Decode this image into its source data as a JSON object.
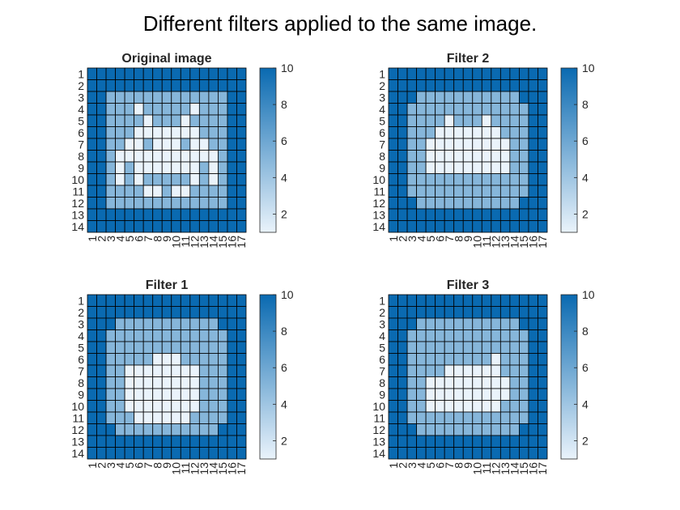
{
  "figure_title": "Different filters applied to the same image.",
  "colors": {
    "high": "#0a6ab1",
    "low": "#eaf3fb",
    "grid": "#000000"
  },
  "chart_data": [
    {
      "type": "heatmap",
      "title": "Original image",
      "x_ticks": [
        "1",
        "2",
        "3",
        "4",
        "5",
        "6",
        "7",
        "8",
        "9",
        "10",
        "11",
        "12",
        "13",
        "14",
        "15",
        "16",
        "17"
      ],
      "y_ticks": [
        "1",
        "2",
        "3",
        "4",
        "5",
        "6",
        "7",
        "8",
        "9",
        "10",
        "11",
        "12",
        "13",
        "14"
      ],
      "colorbar": {
        "ticks": [
          "2",
          "4",
          "6",
          "8",
          "10"
        ],
        "range": [
          1,
          10
        ]
      },
      "matrix": [
        [
          10,
          10,
          10,
          10,
          10,
          10,
          10,
          10,
          10,
          10,
          10,
          10,
          10,
          10,
          10,
          10,
          10
        ],
        [
          10,
          10,
          10,
          10,
          10,
          10,
          10,
          10,
          10,
          10,
          10,
          10,
          10,
          10,
          10,
          10,
          10
        ],
        [
          10,
          10,
          5,
          5,
          5,
          5,
          5,
          5,
          5,
          5,
          5,
          5,
          5,
          5,
          5,
          10,
          10
        ],
        [
          10,
          10,
          5,
          5,
          5,
          1,
          5,
          5,
          5,
          5,
          5,
          1,
          5,
          5,
          5,
          10,
          10
        ],
        [
          10,
          10,
          5,
          5,
          5,
          5,
          1,
          5,
          5,
          5,
          1,
          5,
          5,
          5,
          5,
          10,
          10
        ],
        [
          10,
          10,
          5,
          5,
          5,
          1,
          1,
          1,
          1,
          1,
          1,
          1,
          5,
          5,
          5,
          10,
          10
        ],
        [
          10,
          10,
          5,
          5,
          1,
          1,
          5,
          1,
          1,
          1,
          5,
          1,
          1,
          5,
          5,
          10,
          10
        ],
        [
          10,
          10,
          5,
          1,
          1,
          1,
          1,
          1,
          1,
          1,
          1,
          1,
          1,
          1,
          5,
          10,
          10
        ],
        [
          10,
          10,
          5,
          1,
          5,
          1,
          1,
          1,
          1,
          1,
          1,
          1,
          5,
          1,
          5,
          10,
          10
        ],
        [
          10,
          10,
          5,
          1,
          5,
          1,
          5,
          5,
          5,
          5,
          5,
          1,
          5,
          1,
          5,
          10,
          10
        ],
        [
          10,
          10,
          5,
          5,
          5,
          5,
          1,
          1,
          5,
          1,
          1,
          5,
          5,
          5,
          5,
          10,
          10
        ],
        [
          10,
          10,
          5,
          5,
          5,
          5,
          5,
          5,
          5,
          5,
          5,
          5,
          5,
          5,
          5,
          10,
          10
        ],
        [
          10,
          10,
          10,
          10,
          10,
          10,
          10,
          10,
          10,
          10,
          10,
          10,
          10,
          10,
          10,
          10,
          10
        ],
        [
          10,
          10,
          10,
          10,
          10,
          10,
          10,
          10,
          10,
          10,
          10,
          10,
          10,
          10,
          10,
          10,
          10
        ]
      ]
    },
    {
      "type": "heatmap",
      "title": "Filter 2",
      "x_ticks": [
        "1",
        "2",
        "3",
        "4",
        "5",
        "6",
        "7",
        "8",
        "9",
        "10",
        "11",
        "12",
        "13",
        "14",
        "15",
        "16",
        "17"
      ],
      "y_ticks": [
        "1",
        "2",
        "3",
        "4",
        "5",
        "6",
        "7",
        "8",
        "9",
        "10",
        "11",
        "12",
        "13",
        "14"
      ],
      "colorbar": {
        "ticks": [
          "2",
          "4",
          "6",
          "8",
          "10"
        ],
        "range": [
          1,
          10
        ]
      },
      "matrix": [
        [
          10,
          10,
          10,
          10,
          10,
          10,
          10,
          10,
          10,
          10,
          10,
          10,
          10,
          10,
          10,
          10,
          10
        ],
        [
          10,
          10,
          10,
          10,
          10,
          10,
          10,
          10,
          10,
          10,
          10,
          10,
          10,
          10,
          10,
          10,
          10
        ],
        [
          10,
          10,
          10,
          5,
          5,
          5,
          5,
          5,
          5,
          5,
          5,
          5,
          5,
          5,
          10,
          10,
          10
        ],
        [
          10,
          10,
          5,
          5,
          5,
          5,
          5,
          5,
          5,
          5,
          5,
          5,
          5,
          5,
          5,
          10,
          10
        ],
        [
          10,
          10,
          5,
          5,
          5,
          5,
          1,
          5,
          5,
          5,
          1,
          5,
          5,
          5,
          5,
          10,
          10
        ],
        [
          10,
          10,
          5,
          5,
          5,
          1,
          1,
          1,
          1,
          1,
          1,
          1,
          5,
          5,
          5,
          10,
          10
        ],
        [
          10,
          10,
          5,
          5,
          1,
          1,
          1,
          1,
          1,
          1,
          1,
          1,
          1,
          5,
          5,
          10,
          10
        ],
        [
          10,
          10,
          5,
          5,
          1,
          1,
          1,
          1,
          1,
          1,
          1,
          1,
          1,
          5,
          5,
          10,
          10
        ],
        [
          10,
          10,
          5,
          5,
          1,
          1,
          1,
          1,
          1,
          1,
          1,
          1,
          1,
          5,
          5,
          10,
          10
        ],
        [
          10,
          10,
          5,
          5,
          5,
          5,
          5,
          5,
          5,
          5,
          5,
          5,
          5,
          5,
          5,
          10,
          10
        ],
        [
          10,
          10,
          5,
          5,
          5,
          5,
          5,
          5,
          5,
          5,
          5,
          5,
          5,
          5,
          5,
          10,
          10
        ],
        [
          10,
          10,
          10,
          5,
          5,
          5,
          5,
          5,
          5,
          5,
          5,
          5,
          5,
          5,
          10,
          10,
          10
        ],
        [
          10,
          10,
          10,
          10,
          10,
          10,
          10,
          10,
          10,
          10,
          10,
          10,
          10,
          10,
          10,
          10,
          10
        ],
        [
          10,
          10,
          10,
          10,
          10,
          10,
          10,
          10,
          10,
          10,
          10,
          10,
          10,
          10,
          10,
          10,
          10
        ]
      ]
    },
    {
      "type": "heatmap",
      "title": "Filter 1",
      "x_ticks": [
        "1",
        "2",
        "3",
        "4",
        "5",
        "6",
        "7",
        "8",
        "9",
        "10",
        "11",
        "12",
        "13",
        "14",
        "15",
        "16",
        "17"
      ],
      "y_ticks": [
        "1",
        "2",
        "3",
        "4",
        "5",
        "6",
        "7",
        "8",
        "9",
        "10",
        "11",
        "12",
        "13",
        "14"
      ],
      "colorbar": {
        "ticks": [
          "2",
          "4",
          "6",
          "8",
          "10"
        ],
        "range": [
          1,
          10
        ]
      },
      "matrix": [
        [
          10,
          10,
          10,
          10,
          10,
          10,
          10,
          10,
          10,
          10,
          10,
          10,
          10,
          10,
          10,
          10,
          10
        ],
        [
          10,
          10,
          10,
          10,
          10,
          10,
          10,
          10,
          10,
          10,
          10,
          10,
          10,
          10,
          10,
          10,
          10
        ],
        [
          10,
          10,
          10,
          5,
          5,
          5,
          5,
          5,
          5,
          5,
          5,
          5,
          5,
          5,
          10,
          10,
          10
        ],
        [
          10,
          10,
          5,
          5,
          5,
          5,
          5,
          5,
          5,
          5,
          5,
          5,
          5,
          5,
          5,
          10,
          10
        ],
        [
          10,
          10,
          5,
          5,
          5,
          5,
          5,
          5,
          5,
          5,
          5,
          5,
          5,
          5,
          5,
          10,
          10
        ],
        [
          10,
          10,
          5,
          5,
          5,
          5,
          5,
          1,
          1,
          1,
          5,
          5,
          5,
          5,
          5,
          10,
          10
        ],
        [
          10,
          10,
          5,
          5,
          1,
          1,
          1,
          1,
          1,
          1,
          1,
          1,
          5,
          5,
          5,
          10,
          10
        ],
        [
          10,
          10,
          5,
          5,
          1,
          1,
          1,
          1,
          1,
          1,
          1,
          1,
          5,
          5,
          5,
          10,
          10
        ],
        [
          10,
          10,
          5,
          5,
          1,
          1,
          1,
          1,
          1,
          1,
          1,
          1,
          5,
          5,
          5,
          10,
          10
        ],
        [
          10,
          10,
          5,
          5,
          1,
          1,
          1,
          1,
          1,
          1,
          1,
          1,
          5,
          5,
          5,
          10,
          10
        ],
        [
          10,
          10,
          5,
          5,
          5,
          1,
          1,
          1,
          1,
          1,
          1,
          5,
          5,
          5,
          5,
          10,
          10
        ],
        [
          10,
          10,
          10,
          5,
          5,
          5,
          5,
          5,
          5,
          5,
          5,
          5,
          5,
          5,
          10,
          10,
          10
        ],
        [
          10,
          10,
          10,
          10,
          10,
          10,
          10,
          10,
          10,
          10,
          10,
          10,
          10,
          10,
          10,
          10,
          10
        ],
        [
          10,
          10,
          10,
          10,
          10,
          10,
          10,
          10,
          10,
          10,
          10,
          10,
          10,
          10,
          10,
          10,
          10
        ]
      ]
    },
    {
      "type": "heatmap",
      "title": "Filter 3",
      "x_ticks": [
        "1",
        "2",
        "3",
        "4",
        "5",
        "6",
        "7",
        "8",
        "9",
        "10",
        "11",
        "12",
        "13",
        "14",
        "15",
        "16",
        "17"
      ],
      "y_ticks": [
        "1",
        "2",
        "3",
        "4",
        "5",
        "6",
        "7",
        "8",
        "9",
        "10",
        "11",
        "12",
        "13",
        "14"
      ],
      "colorbar": {
        "ticks": [
          "2",
          "4",
          "6",
          "8",
          "10"
        ],
        "range": [
          1,
          10
        ]
      },
      "matrix": [
        [
          10,
          10,
          10,
          10,
          10,
          10,
          10,
          10,
          10,
          10,
          10,
          10,
          10,
          10,
          10,
          10,
          10
        ],
        [
          10,
          10,
          10,
          10,
          10,
          10,
          10,
          10,
          10,
          10,
          10,
          10,
          10,
          10,
          10,
          10,
          10
        ],
        [
          10,
          10,
          10,
          5,
          5,
          5,
          5,
          5,
          5,
          5,
          5,
          5,
          5,
          5,
          10,
          10,
          10
        ],
        [
          10,
          10,
          5,
          5,
          5,
          5,
          5,
          5,
          5,
          5,
          5,
          5,
          5,
          5,
          5,
          10,
          10
        ],
        [
          10,
          10,
          5,
          5,
          5,
          5,
          5,
          5,
          5,
          5,
          5,
          5,
          5,
          5,
          5,
          10,
          10
        ],
        [
          10,
          10,
          5,
          5,
          5,
          5,
          5,
          5,
          5,
          5,
          5,
          1,
          5,
          5,
          5,
          10,
          10
        ],
        [
          10,
          10,
          5,
          5,
          5,
          5,
          1,
          1,
          1,
          1,
          1,
          1,
          5,
          5,
          5,
          10,
          10
        ],
        [
          10,
          10,
          5,
          5,
          1,
          1,
          1,
          1,
          1,
          1,
          1,
          1,
          1,
          5,
          5,
          10,
          10
        ],
        [
          10,
          10,
          5,
          5,
          1,
          1,
          1,
          1,
          1,
          1,
          1,
          1,
          1,
          5,
          5,
          10,
          10
        ],
        [
          10,
          10,
          5,
          5,
          1,
          1,
          1,
          1,
          1,
          1,
          1,
          1,
          5,
          5,
          5,
          10,
          10
        ],
        [
          10,
          10,
          5,
          5,
          5,
          5,
          5,
          5,
          5,
          5,
          5,
          5,
          5,
          5,
          5,
          10,
          10
        ],
        [
          10,
          10,
          10,
          5,
          5,
          5,
          5,
          5,
          5,
          5,
          5,
          5,
          5,
          5,
          10,
          10,
          10
        ],
        [
          10,
          10,
          10,
          10,
          10,
          10,
          10,
          10,
          10,
          10,
          10,
          10,
          10,
          10,
          10,
          10,
          10
        ],
        [
          10,
          10,
          10,
          10,
          10,
          10,
          10,
          10,
          10,
          10,
          10,
          10,
          10,
          10,
          10,
          10,
          10
        ]
      ]
    }
  ]
}
